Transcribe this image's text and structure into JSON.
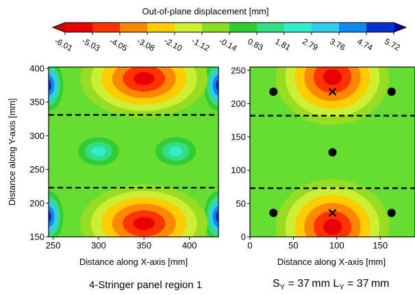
{
  "colorbar": {
    "title": "Out-of-plane displacement [mm]",
    "ticks": [
      "-6.01",
      "-5.03",
      "-4.05",
      "-3.08",
      "-2.10",
      "-1.12",
      "-0.14",
      "0.83",
      "1.81",
      "2.79",
      "3.76",
      "4.74",
      "5.72"
    ],
    "colors": [
      "#e60000",
      "#ff3300",
      "#ff8800",
      "#ffcc00",
      "#ccee33",
      "#88dd22",
      "#33cc33",
      "#33dd88",
      "#33eecc",
      "#33ccee",
      "#1188ee",
      "#0033cc"
    ]
  },
  "chart_data": [
    {
      "type": "heatmap",
      "title": "",
      "xlabel": "Distance along X-axis [mm]",
      "ylabel": "Distance along Y-axis [mm]",
      "xlim": [
        245,
        432
      ],
      "ylim": [
        150,
        402
      ],
      "xticks": [
        "250",
        "300",
        "350",
        "400"
      ],
      "yticks": [
        "150",
        "200",
        "250",
        "300",
        "350",
        "400"
      ],
      "xtick_values": [
        250,
        300,
        350,
        400
      ],
      "ytick_values": [
        150,
        200,
        250,
        300,
        350,
        400
      ],
      "dashed_lines_y": [
        223,
        331
      ],
      "field_description": "two red-orange bowls centered at x≈350 near y≈385 and y≈170; cyan bumps at x≈300 and x≈385 near y≈277; blue strips along left/right edges at y≈180 and y≈375",
      "extrema": [
        {
          "x": 350,
          "y": 385,
          "value": -6.01
        },
        {
          "x": 350,
          "y": 170,
          "value": -6.01
        },
        {
          "x": 300,
          "y": 277,
          "value": 2.3
        },
        {
          "x": 385,
          "y": 277,
          "value": 2.3
        },
        {
          "x": 250,
          "y": 180,
          "value": 5.5
        },
        {
          "x": 430,
          "y": 180,
          "value": 5.5
        },
        {
          "x": 250,
          "y": 375,
          "value": 5.5
        },
        {
          "x": 430,
          "y": 375,
          "value": 5.5
        }
      ]
    },
    {
      "type": "heatmap",
      "title": "",
      "xlabel": "Distance along X-axis [mm]",
      "ylabel": "",
      "xlim": [
        0,
        190
      ],
      "ylim": [
        0,
        255
      ],
      "xticks": [
        "0",
        "50",
        "100",
        "150"
      ],
      "yticks": [
        "0",
        "50",
        "100",
        "150",
        "200",
        "250"
      ],
      "xtick_values": [
        0,
        50,
        100,
        150
      ],
      "ytick_values": [
        0,
        50,
        100,
        150,
        200,
        250
      ],
      "dashed_lines_y": [
        73,
        182
      ],
      "extrema": [
        {
          "x": 95,
          "y": 240,
          "value": -6.01
        },
        {
          "x": 95,
          "y": 15,
          "value": -6.01
        }
      ],
      "circle_markers": [
        {
          "x": 27,
          "y": 218
        },
        {
          "x": 163,
          "y": 218
        },
        {
          "x": 95,
          "y": 127
        },
        {
          "x": 27,
          "y": 36
        },
        {
          "x": 163,
          "y": 36
        }
      ],
      "cross_markers": [
        {
          "x": 95,
          "y": 218
        },
        {
          "x": 95,
          "y": 36
        }
      ]
    }
  ],
  "footer": {
    "left": "4-Stringer panel region 1",
    "right": "SY = 37 mm  LY = 37 mm"
  }
}
